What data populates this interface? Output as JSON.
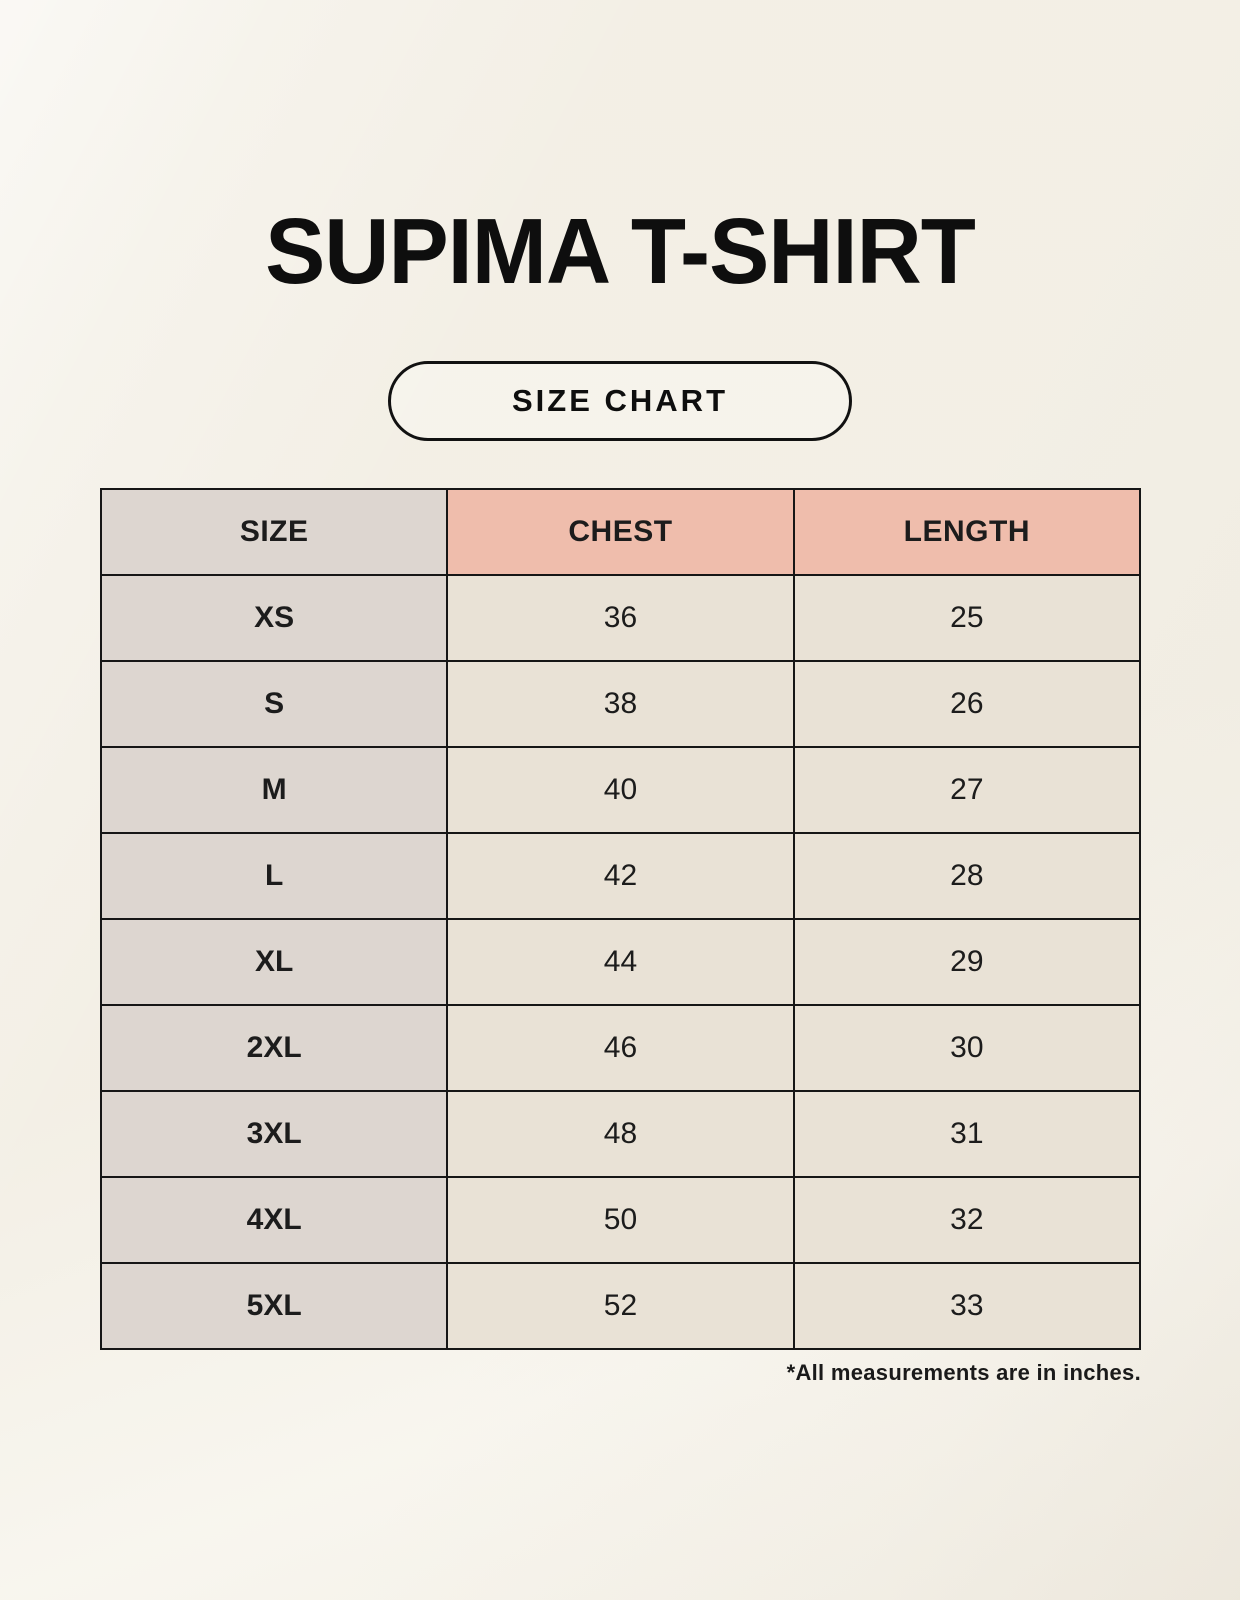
{
  "page": {
    "title": "SUPIMA T-SHIRT",
    "badge_label": "SIZE CHART",
    "footnote": "*All measurements are in inches."
  },
  "colors": {
    "bg": "#f6f3ea",
    "accent": "#efbdac",
    "col_gray": "#ddd6d0",
    "cell_beige": "#e9e2d6",
    "border": "#161616",
    "ink": "#151515"
  },
  "table": {
    "headers": [
      "SIZE",
      "CHEST",
      "LENGTH"
    ],
    "rows": [
      {
        "size": "XS",
        "chest": "36",
        "length": "25"
      },
      {
        "size": "S",
        "chest": "38",
        "length": "26"
      },
      {
        "size": "M",
        "chest": "40",
        "length": "27"
      },
      {
        "size": "L",
        "chest": "42",
        "length": "28"
      },
      {
        "size": "XL",
        "chest": "44",
        "length": "29"
      },
      {
        "size": "2XL",
        "chest": "46",
        "length": "30"
      },
      {
        "size": "3XL",
        "chest": "48",
        "length": "31"
      },
      {
        "size": "4XL",
        "chest": "50",
        "length": "32"
      },
      {
        "size": "5XL",
        "chest": "52",
        "length": "33"
      }
    ],
    "units_note": "inches"
  }
}
